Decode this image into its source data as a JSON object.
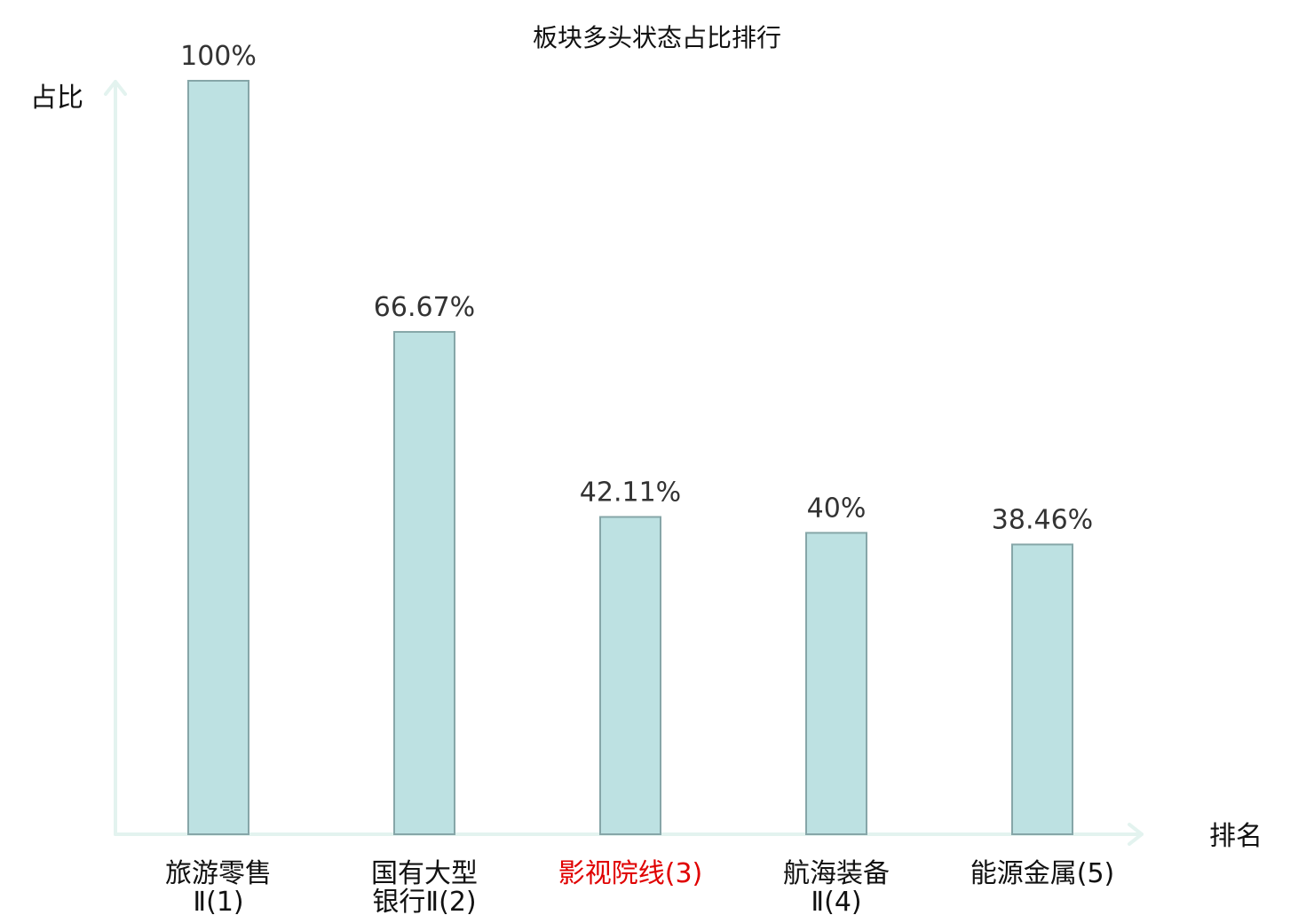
{
  "chart_data": {
    "type": "bar",
    "title": "板块多头状态占比排行",
    "ylabel": "占比",
    "xlabel": "排名",
    "ylim": [
      0,
      100
    ],
    "grid": false,
    "categories": [
      {
        "lines": [
          "旅游零售",
          "Ⅱ(1)"
        ],
        "highlight": false
      },
      {
        "lines": [
          "国有大型",
          "银行Ⅱ(2)"
        ],
        "highlight": false
      },
      {
        "lines": [
          "影视院线(3)"
        ],
        "highlight": true
      },
      {
        "lines": [
          "航海装备",
          "Ⅱ(4)"
        ],
        "highlight": false
      },
      {
        "lines": [
          "能源金属(5)"
        ],
        "highlight": false
      }
    ],
    "values": [
      100,
      66.67,
      42.11,
      40,
      38.46
    ],
    "value_labels": [
      "100%",
      "66.67%",
      "42.11%",
      "40%",
      "38.46%"
    ],
    "colors": {
      "bar_fill": "#bde1e2",
      "bar_stroke": "#86a6a8",
      "axis": "#e3f3ef",
      "highlight_text": "#e00000"
    }
  }
}
